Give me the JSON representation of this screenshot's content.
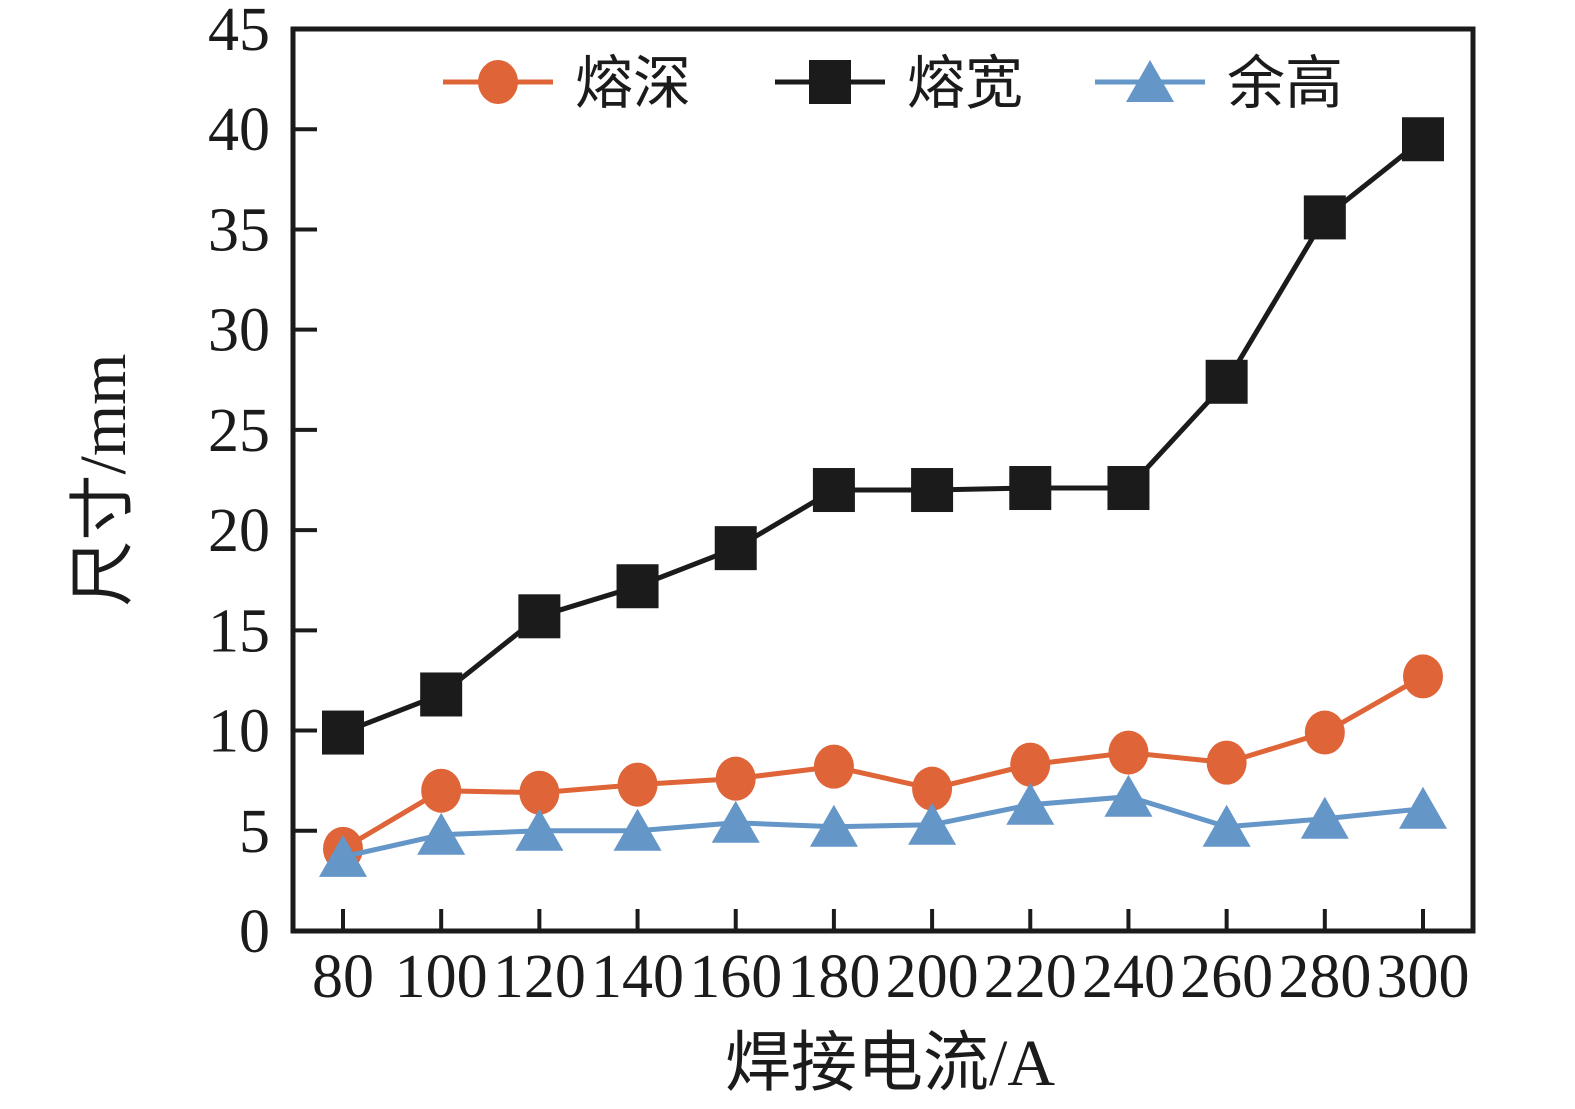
{
  "figure": {
    "background": "#ffffff",
    "axis_color": "#1b1b1b"
  },
  "chart_data": {
    "type": "line",
    "x_categories": [
      "80",
      "100",
      "120",
      "140",
      "160",
      "180",
      "200",
      "220",
      "240",
      "260",
      "280",
      "300"
    ],
    "xlabel": "焊接电流/A",
    "ylabel": "尺寸/mm",
    "ylim": [
      0,
      45
    ],
    "y_ticks": [
      0,
      5,
      10,
      15,
      20,
      25,
      30,
      35,
      40,
      45
    ],
    "grid": false,
    "legend_position": "top-inside",
    "series": [
      {
        "name": "熔深",
        "name_en": "penetration-depth",
        "marker": "circle",
        "color": "#DF6437",
        "values": [
          4.1,
          7.0,
          6.9,
          7.3,
          7.6,
          8.2,
          7.1,
          8.3,
          8.9,
          8.4,
          9.9,
          12.7
        ]
      },
      {
        "name": "熔宽",
        "name_en": "weld-width",
        "marker": "square",
        "color": "#1B1B1B",
        "values": [
          9.9,
          11.8,
          15.7,
          17.2,
          19.1,
          22.0,
          22.0,
          22.1,
          22.1,
          27.4,
          35.6,
          39.5
        ]
      },
      {
        "name": "余高",
        "name_en": "reinforcement-height",
        "marker": "triangle",
        "color": "#6596C8",
        "values": [
          3.7,
          4.8,
          5.0,
          5.0,
          5.4,
          5.2,
          5.3,
          6.3,
          6.7,
          5.2,
          5.6,
          6.1
        ]
      }
    ]
  }
}
